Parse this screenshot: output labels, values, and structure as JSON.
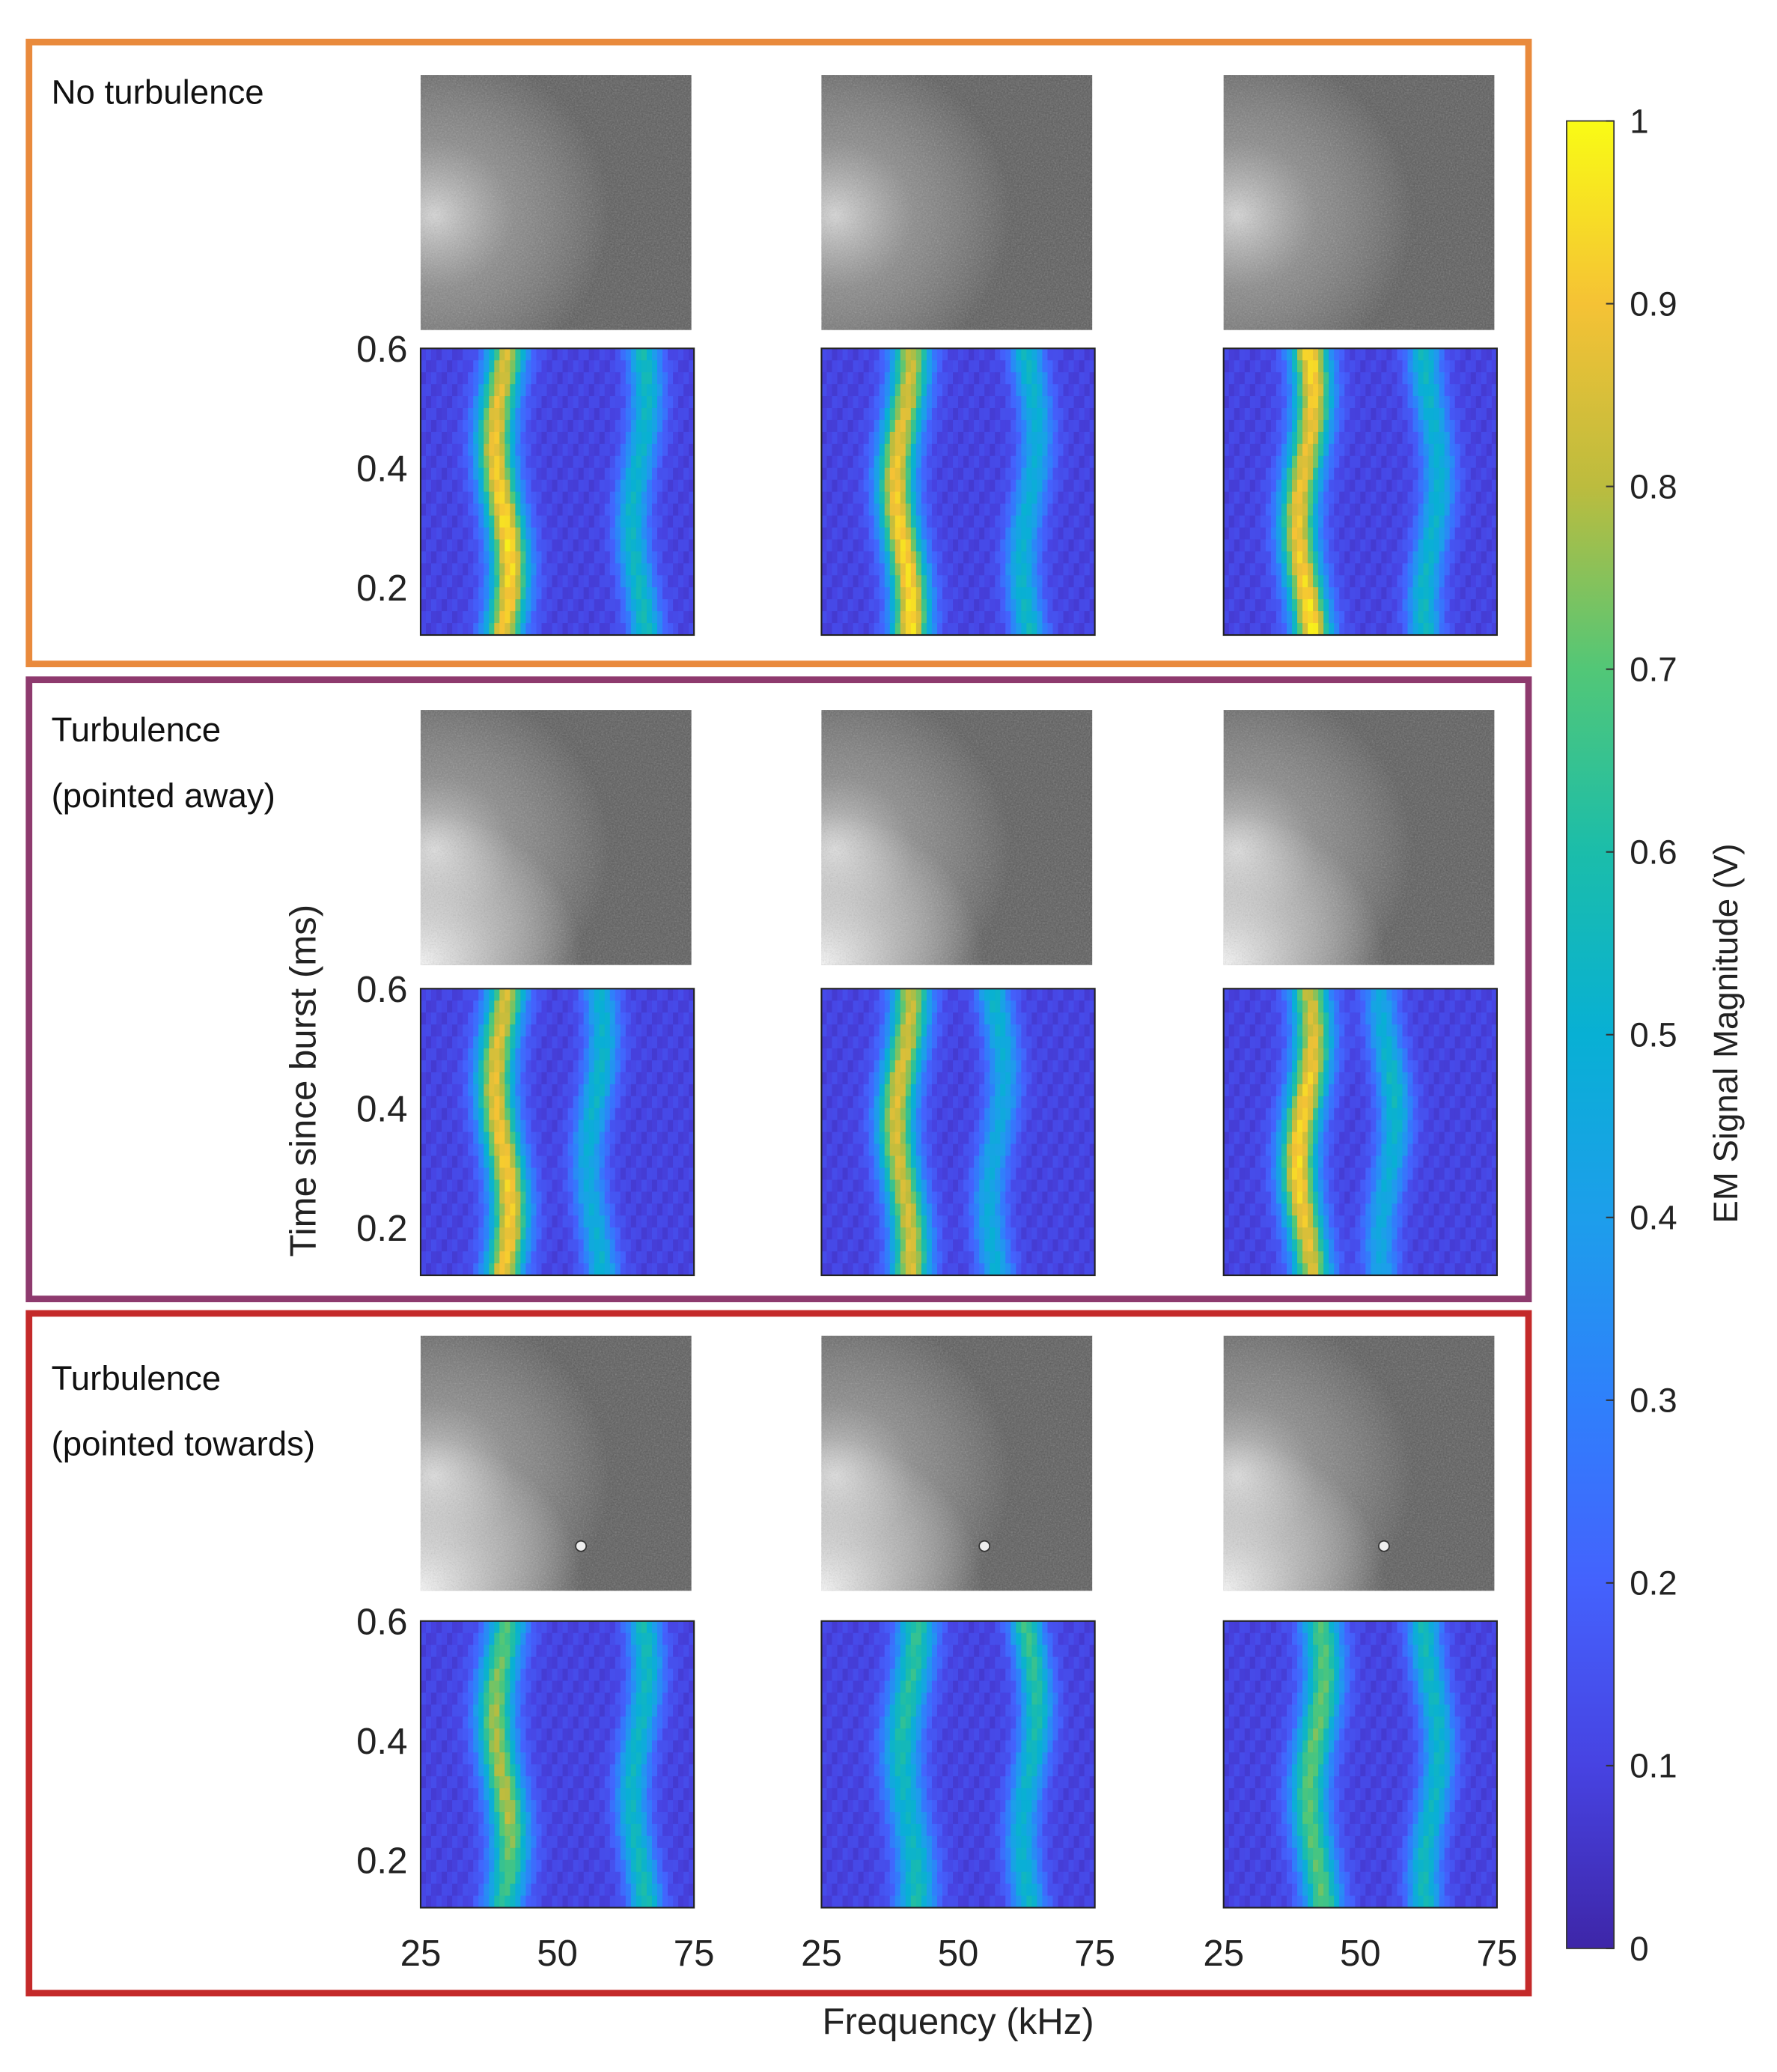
{
  "chart_data": {
    "type": "heatmap",
    "title": "",
    "xlabel": "Frequency (kHz)",
    "ylabel": "Time since burst (ms)",
    "x_ticks": [
      25,
      50,
      75
    ],
    "y_ticks": [
      0.2,
      0.4,
      0.6
    ],
    "xlim": [
      25,
      75
    ],
    "ylim": [
      0.12,
      0.6
    ],
    "colorbar": {
      "label": "EM Signal Magnitude (V)",
      "range": [
        0,
        1
      ],
      "ticks": [
        0,
        0.1,
        0.2,
        0.3,
        0.4,
        0.5,
        0.6,
        0.7,
        0.8,
        0.9,
        1
      ]
    },
    "groups": [
      {
        "label": "No turbulence",
        "frame_color": "#e98a3c",
        "panels": [
          {
            "bands": [
              {
                "freq": 40,
                "amp": [
                  0.74,
                  0.8,
                  0.86,
                  0.8
                ]
              },
              {
                "freq": 65,
                "amp": [
                  0.48,
                  0.42,
                  0.44,
                  0.48
                ]
              }
            ]
          },
          {
            "bands": [
              {
                "freq": 40,
                "amp": [
                  0.72,
                  0.78,
                  0.84,
                  0.86
                ]
              },
              {
                "freq": 63,
                "amp": [
                  0.46,
                  0.38,
                  0.4,
                  0.46
                ]
              }
            ]
          },
          {
            "bands": [
              {
                "freq": 40,
                "amp": [
                  0.86,
                  0.78,
                  0.8,
                  0.88
                ]
              },
              {
                "freq": 63,
                "amp": [
                  0.46,
                  0.4,
                  0.42,
                  0.46
                ]
              }
            ]
          }
        ]
      },
      {
        "label": "Turbulence",
        "label2": "(pointed away)",
        "frame_color": "#8e3a6e",
        "panels": [
          {
            "bands": [
              {
                "freq": 40,
                "amp": [
                  0.74,
                  0.78,
                  0.82,
                  0.8
                ]
              },
              {
                "freq": 57,
                "amp": [
                  0.4,
                  0.44,
                  0.36,
                  0.42
                ]
              }
            ]
          },
          {
            "bands": [
              {
                "freq": 40,
                "amp": [
                  0.72,
                  0.76,
                  0.74,
                  0.76
                ]
              },
              {
                "freq": 57,
                "amp": [
                  0.44,
                  0.36,
                  0.36,
                  0.4
                ]
              }
            ]
          },
          {
            "bands": [
              {
                "freq": 40,
                "amp": [
                  0.72,
                  0.82,
                  0.84,
                  0.74
                ]
              },
              {
                "freq": 55,
                "amp": [
                  0.34,
                  0.46,
                  0.38,
                  0.34
                ]
              }
            ]
          }
        ]
      },
      {
        "label": "Turbulence",
        "label2": "(pointed towards)",
        "frame_color": "#c42a2a",
        "panels": [
          {
            "bands": [
              {
                "freq": 40,
                "amp": [
                  0.58,
                  0.68,
                  0.7,
                  0.52
                ]
              },
              {
                "freq": 65,
                "amp": [
                  0.48,
                  0.44,
                  0.44,
                  0.5
                ]
              }
            ]
          },
          {
            "bands": [
              {
                "freq": 41,
                "amp": [
                  0.54,
                  0.52,
                  0.42,
                  0.5
                ]
              },
              {
                "freq": 63,
                "amp": [
                  0.58,
                  0.5,
                  0.4,
                  0.44
                ]
              }
            ]
          },
          {
            "bands": [
              {
                "freq": 42,
                "amp": [
                  0.58,
                  0.62,
                  0.6,
                  0.6
                ]
              },
              {
                "freq": 63,
                "amp": [
                  0.48,
                  0.44,
                  0.44,
                  0.48
                ]
              }
            ]
          }
        ]
      }
    ]
  }
}
